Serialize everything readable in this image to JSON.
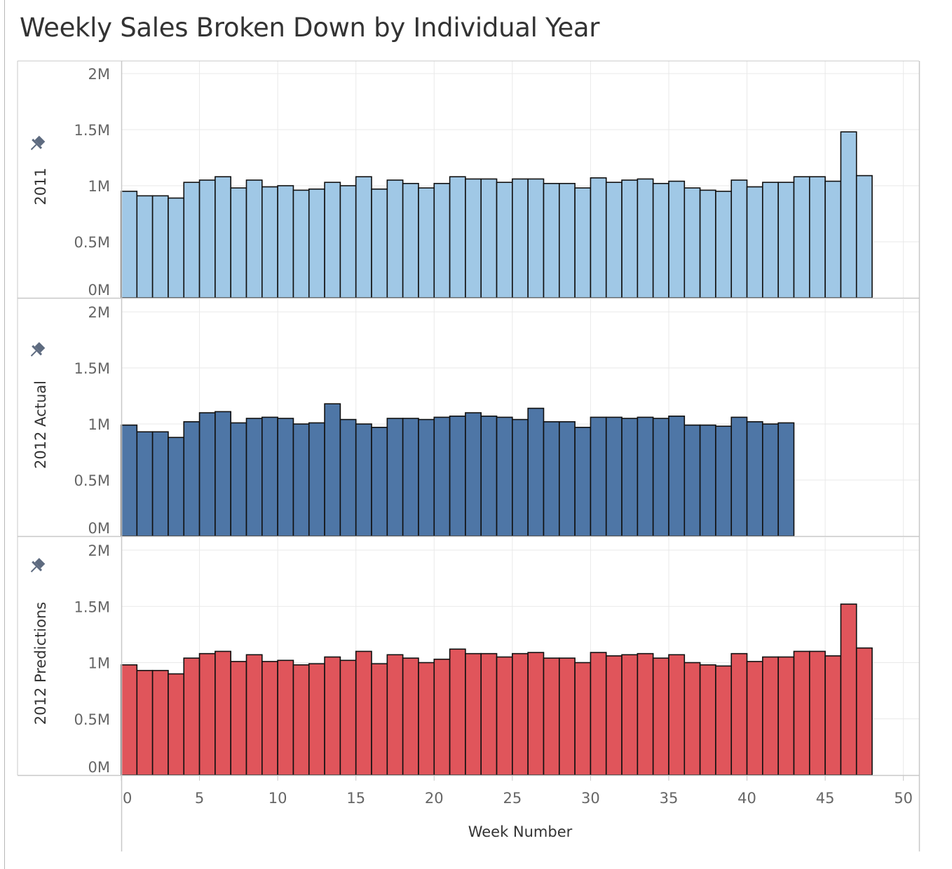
{
  "title": "Weekly Sales Broken Down by Individual Year",
  "colors": {
    "row1": "#a0c8e6",
    "row2": "#4e76a6",
    "row3": "#e0555b",
    "bar_stroke": "#111111",
    "grid": "#e9e9e9",
    "axis": "#c8c8c8",
    "pin": "#5e6b80"
  },
  "chart_data": {
    "type": "bar",
    "title": "Weekly Sales Broken Down by Individual Year",
    "xlabel": "Week Number",
    "x_ticks": [
      "0",
      "5",
      "10",
      "15",
      "20",
      "25",
      "30",
      "35",
      "40",
      "45",
      "50"
    ],
    "xlim": [
      0,
      51
    ],
    "ylim": [
      0,
      2000000
    ],
    "y_ticks": [
      "0M",
      "0.5M",
      "1M",
      "1.5M",
      "2M"
    ],
    "x_start": 0,
    "pin_icon": "pin-icon",
    "grid": true,
    "panels": [
      {
        "name": "2011",
        "values": [
          950000,
          910000,
          910000,
          890000,
          1030000,
          1050000,
          1080000,
          980000,
          1050000,
          990000,
          1000000,
          960000,
          970000,
          1030000,
          1000000,
          1080000,
          970000,
          1050000,
          1020000,
          980000,
          1020000,
          1080000,
          1060000,
          1060000,
          1030000,
          1060000,
          1060000,
          1020000,
          1020000,
          980000,
          1070000,
          1030000,
          1050000,
          1060000,
          1020000,
          1040000,
          980000,
          960000,
          950000,
          1050000,
          990000,
          1030000,
          1030000,
          1080000,
          1080000,
          1040000,
          1480000,
          1090000
        ]
      },
      {
        "name": "2012 Actual",
        "values": [
          990000,
          930000,
          930000,
          880000,
          1020000,
          1100000,
          1110000,
          1010000,
          1050000,
          1060000,
          1050000,
          1000000,
          1010000,
          1180000,
          1040000,
          1000000,
          970000,
          1050000,
          1050000,
          1040000,
          1060000,
          1070000,
          1100000,
          1070000,
          1060000,
          1040000,
          1140000,
          1020000,
          1020000,
          970000,
          1060000,
          1060000,
          1050000,
          1060000,
          1050000,
          1070000,
          990000,
          990000,
          980000,
          1060000,
          1020000,
          1000000,
          1010000
        ]
      },
      {
        "name": "2012 Predictions",
        "values": [
          980000,
          930000,
          930000,
          900000,
          1040000,
          1080000,
          1100000,
          1010000,
          1070000,
          1010000,
          1020000,
          980000,
          990000,
          1050000,
          1020000,
          1100000,
          990000,
          1070000,
          1040000,
          1000000,
          1030000,
          1120000,
          1080000,
          1080000,
          1050000,
          1080000,
          1090000,
          1040000,
          1040000,
          1000000,
          1090000,
          1060000,
          1070000,
          1080000,
          1040000,
          1070000,
          1000000,
          980000,
          970000,
          1080000,
          1010000,
          1050000,
          1050000,
          1100000,
          1100000,
          1060000,
          1520000,
          1130000
        ]
      }
    ]
  }
}
